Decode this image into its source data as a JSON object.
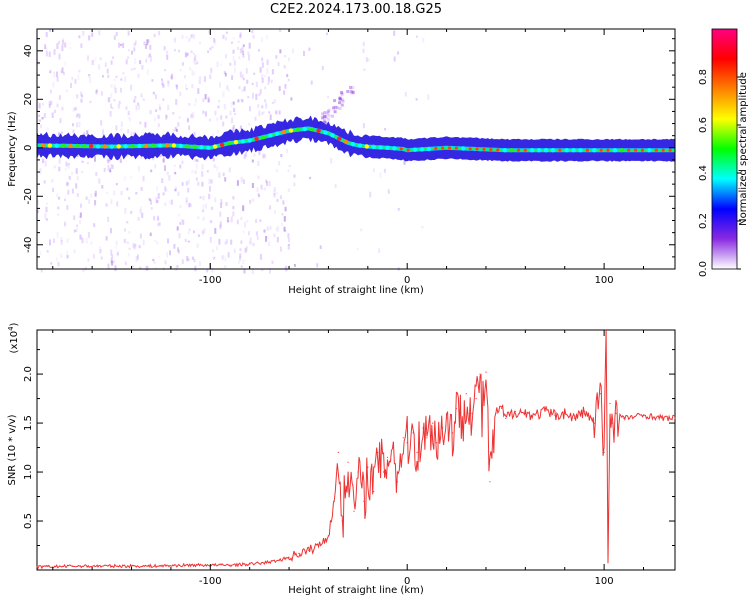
{
  "title": "C2E2.2024.173.00.18.G25",
  "chart_data": [
    {
      "type": "heatmap",
      "xlabel": "Height of straight line (km)",
      "ylabel": "Frequency (Hz)",
      "xlim": [
        -188,
        136
      ],
      "ylim": [
        -50,
        49
      ],
      "xticks": [
        -100,
        0,
        100
      ],
      "xtick_labels": [
        "-100",
        "0",
        "100"
      ],
      "yticks": [
        -40,
        -20,
        0,
        20,
        40
      ],
      "ytick_labels": [
        "-40",
        "-20",
        "0",
        "20",
        "40"
      ],
      "ridge": {
        "x": [
          -188,
          -150,
          -120,
          -100,
          -90,
          -80,
          -70,
          -60,
          -50,
          -40,
          -35,
          -30,
          -25,
          -20,
          -10,
          -2,
          0,
          20,
          50,
          80,
          100,
          120,
          136
        ],
        "y": [
          1,
          0.5,
          1,
          0,
          2,
          3,
          5,
          7,
          8,
          6,
          4,
          2,
          1,
          0.5,
          0,
          -0.5,
          -1,
          0,
          -1,
          -1,
          -1,
          -1,
          -1
        ]
      },
      "colorbar": {
        "label": "Normalized spectral amplitude",
        "range": [
          0,
          1
        ],
        "ticks": [
          0,
          0.2,
          0.4,
          0.6,
          0.8
        ],
        "tick_labels": [
          "0.0",
          "0.2",
          "0.4",
          "0.6",
          "0.8"
        ]
      },
      "colors": [
        "#ffffff",
        "#8a2be2",
        "#0000ff",
        "#00ffff",
        "#00ff00",
        "#ffff00",
        "#ff8000",
        "#ff0000",
        "#ff0080"
      ]
    },
    {
      "type": "line",
      "xlabel": "Height of straight line (km)",
      "ylabel": "SNR (10 * v/v)",
      "multiplier_label": "(x10",
      "multiplier_exp": "4",
      "multiplier_close": ")",
      "xlim": [
        -188,
        136
      ],
      "ylim": [
        0,
        2.45
      ],
      "xticks": [
        -100,
        0,
        100
      ],
      "xtick_labels": [
        "-100",
        "0",
        "100"
      ],
      "yticks": [
        0.5,
        1.0,
        1.5,
        2.0
      ],
      "ytick_labels": [
        "0.5",
        "1.0",
        "1.5",
        "2.0"
      ],
      "series": [
        {
          "color": "#ee3333",
          "x": [
            -188,
            -170,
            -150,
            -130,
            -110,
            -90,
            -80,
            -70,
            -65,
            -60,
            -55,
            -50,
            -45,
            -40,
            -37,
            -35,
            -33,
            -30,
            -27,
            -25,
            -22,
            -20,
            -17,
            -15,
            -12,
            -10,
            -7,
            -5,
            -2,
            0,
            3,
            5,
            8,
            10,
            13,
            15,
            18,
            20,
            23,
            25,
            28,
            30,
            33,
            35,
            37,
            38,
            40,
            42,
            45,
            48,
            50,
            55,
            60,
            65,
            70,
            75,
            80,
            85,
            90,
            95,
            98,
            100,
            101,
            102,
            103,
            104,
            106,
            110,
            120,
            130,
            136
          ],
          "y": [
            0.03,
            0.04,
            0.04,
            0.04,
            0.05,
            0.05,
            0.06,
            0.08,
            0.1,
            0.13,
            0.17,
            0.2,
            0.25,
            0.35,
            0.7,
            1.2,
            0.5,
            1.1,
            0.6,
            1.0,
            0.7,
            1.05,
            0.8,
            1.2,
            1.0,
            1.15,
            1.3,
            0.9,
            1.35,
            1.3,
            1.4,
            1.2,
            1.45,
            1.35,
            1.5,
            1.3,
            1.45,
            1.55,
            1.4,
            1.65,
            1.5,
            1.8,
            1.6,
            1.75,
            2.0,
            1.55,
            2.02,
            0.9,
            1.6,
            1.65,
            1.55,
            1.62,
            1.6,
            1.58,
            1.62,
            1.58,
            1.6,
            1.55,
            1.62,
            1.5,
            1.8,
            1.2,
            2.42,
            0.15,
            1.7,
            1.5,
            1.6,
            1.55,
            1.58,
            1.55,
            1.55
          ]
        }
      ]
    }
  ]
}
